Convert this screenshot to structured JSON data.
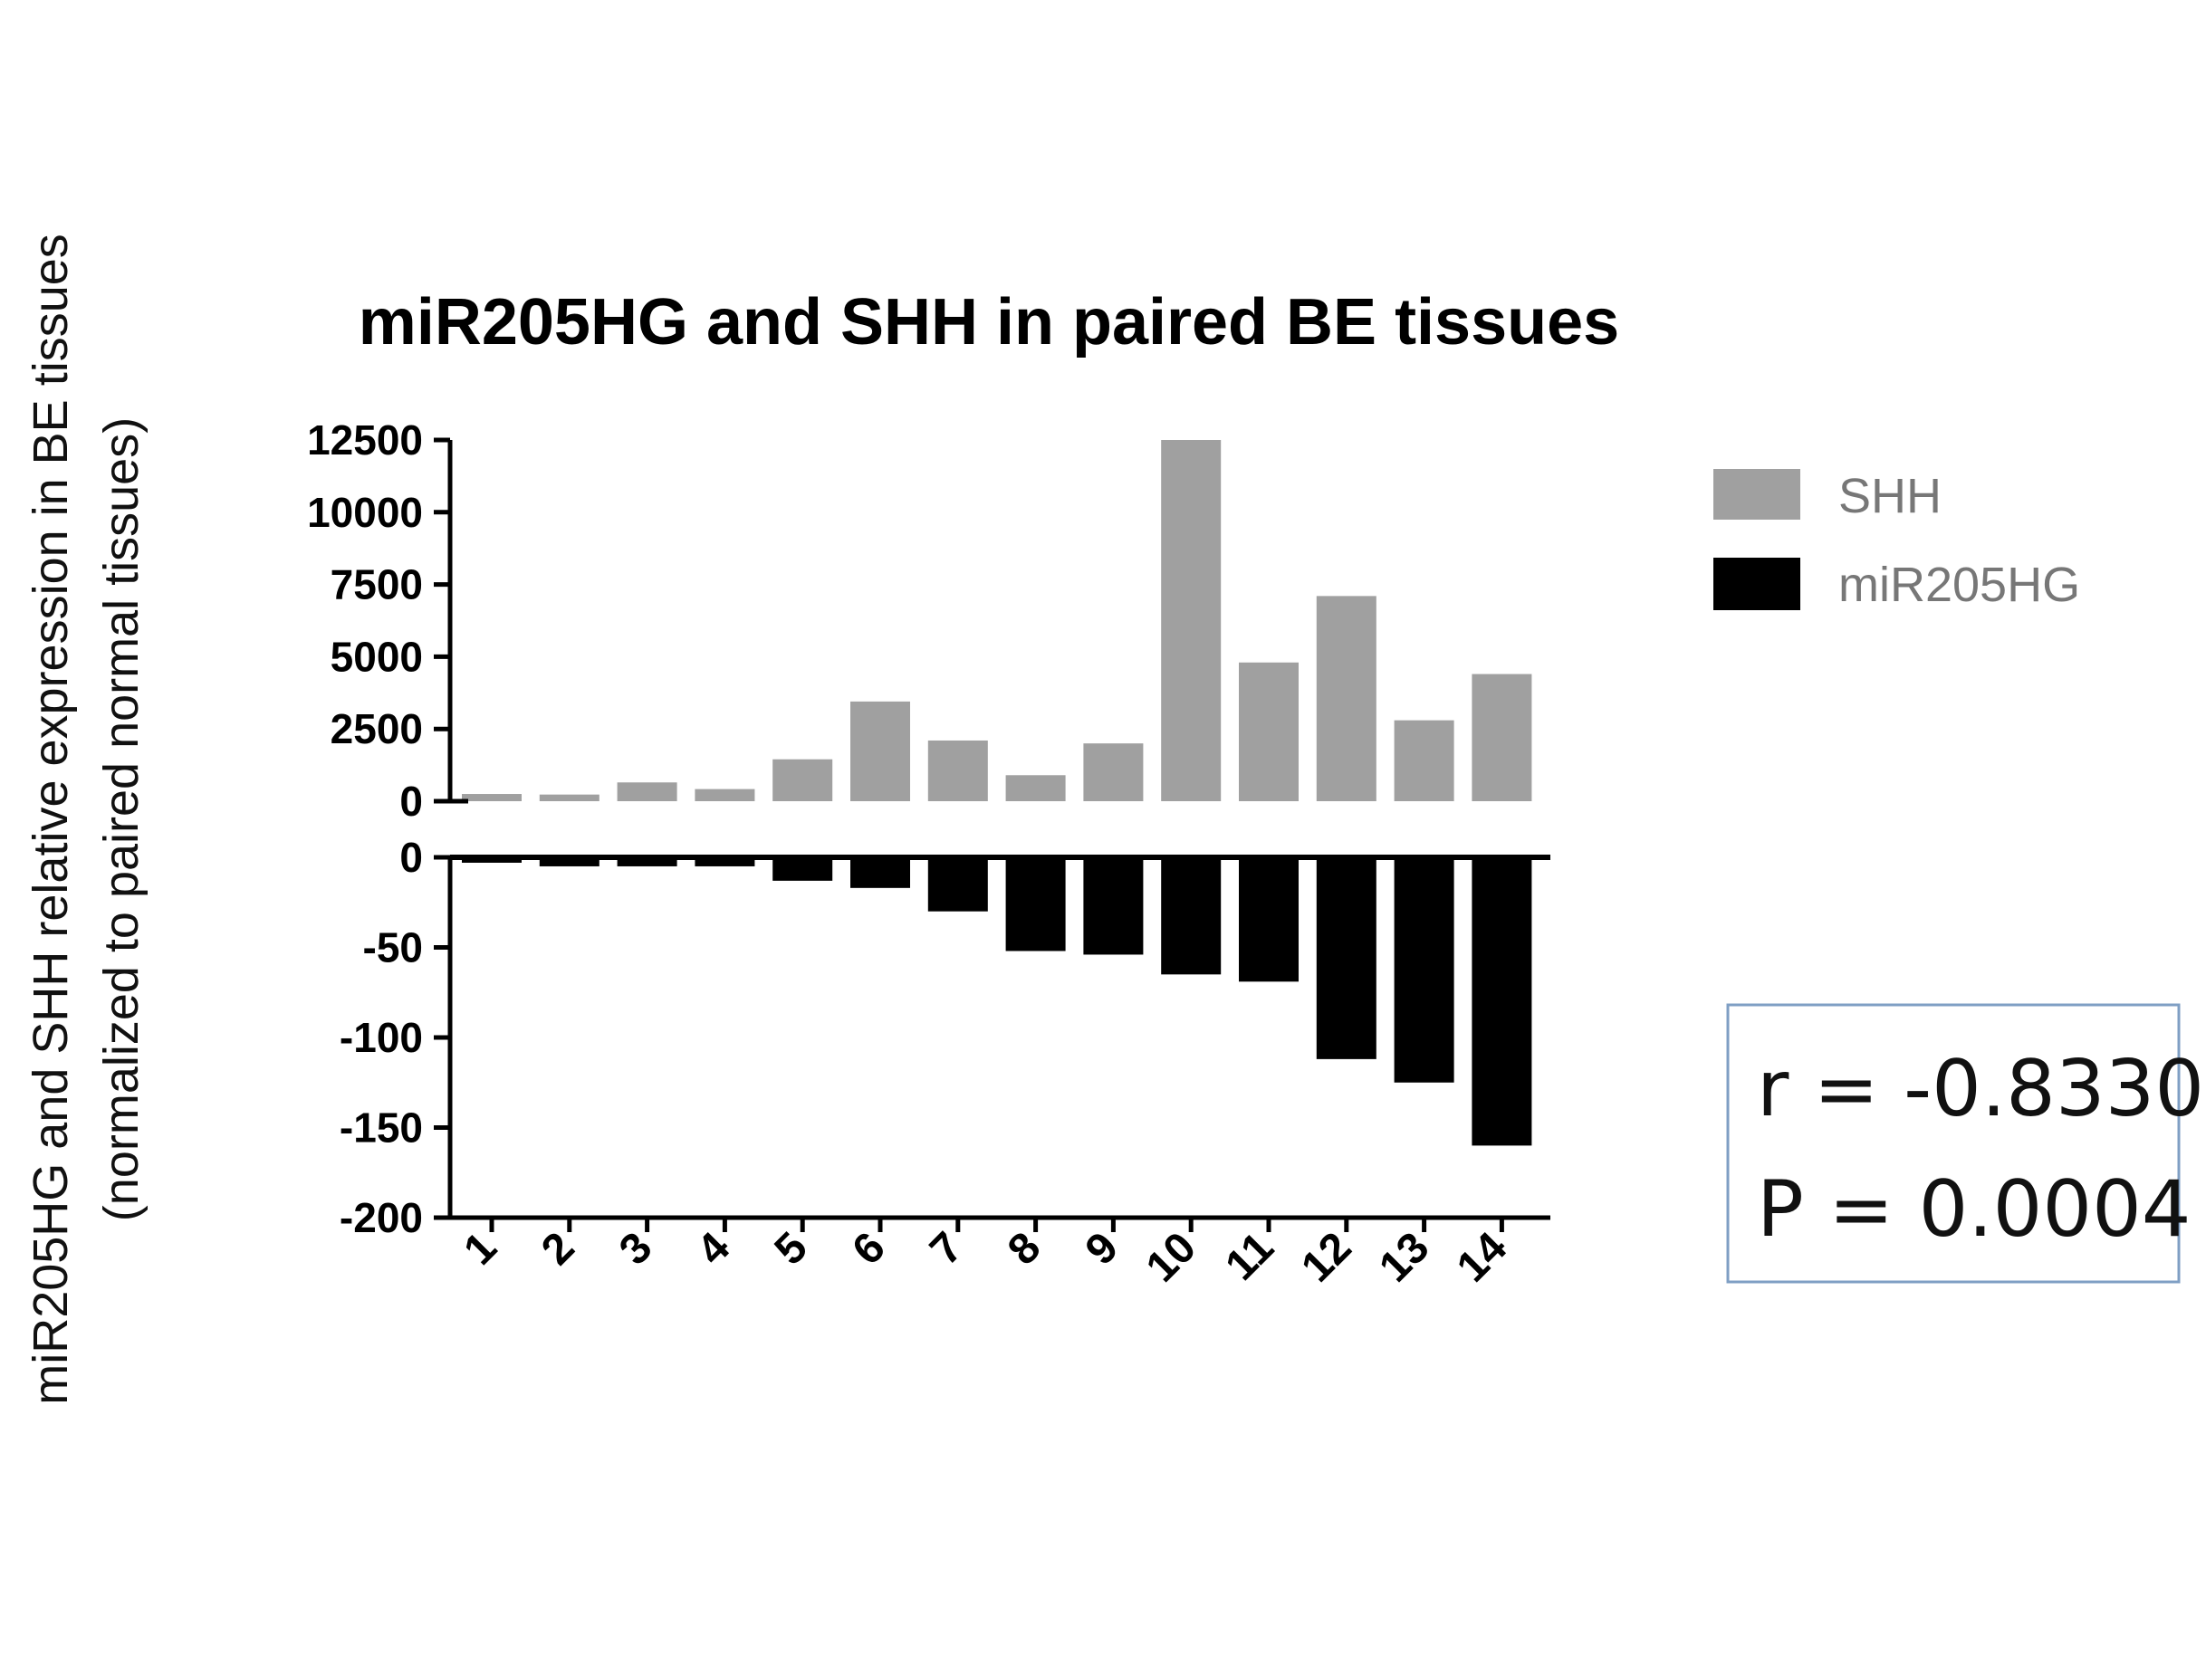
{
  "chart_data": {
    "type": "bar",
    "title": "miR205HG and SHH in paired BE tissues",
    "ylabel_line1": "miR205HG and SHH relative expression in BE tissues",
    "ylabel_line2": "(normalized to paired normal tissues)",
    "categories": [
      "1",
      "2",
      "3",
      "4",
      "5",
      "6",
      "7",
      "8",
      "9",
      "10",
      "11",
      "12",
      "13",
      "14"
    ],
    "series": [
      {
        "name": "SHH",
        "color": "#a0a0a0",
        "ylim": [
          0,
          12500
        ],
        "yticks": [
          "0",
          "2500",
          "5000",
          "7500",
          "10000",
          "12500"
        ],
        "values": [
          250,
          230,
          650,
          420,
          1450,
          3450,
          2100,
          900,
          2000,
          12500,
          4800,
          7100,
          2800,
          4400
        ]
      },
      {
        "name": "miR205HG",
        "color": "#000000",
        "ylim": [
          -200,
          0
        ],
        "yticks": [
          "0",
          "-50",
          "-100",
          "-150",
          "-200"
        ],
        "values": [
          -3,
          -5,
          -5,
          -5,
          -13,
          -17,
          -30,
          -52,
          -54,
          -65,
          -69,
          -112,
          -125,
          -160
        ]
      }
    ],
    "legend_position": "right",
    "annotation": {
      "r": "r = -0.8330",
      "p": "P = 0.0004"
    }
  }
}
